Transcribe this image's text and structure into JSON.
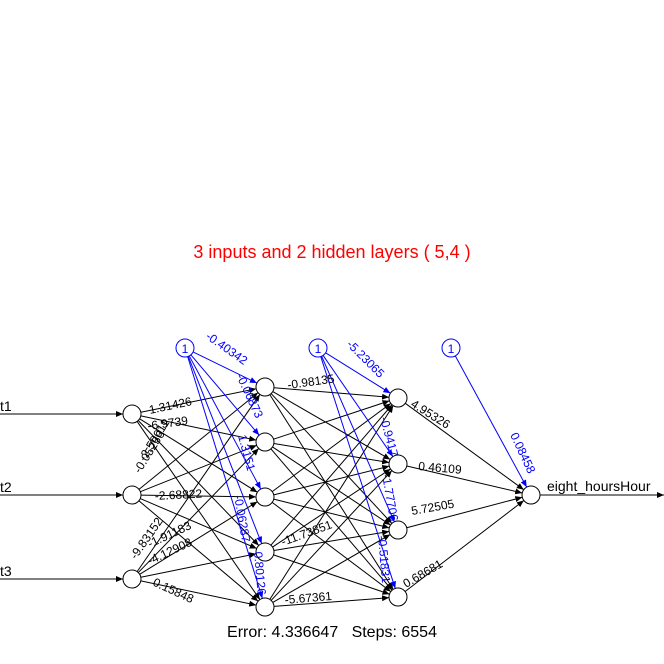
{
  "title": "3 inputs and 2 hidden layers ( 5,4 )",
  "footer": {
    "error_label": "Error: 4.336647",
    "steps_label": "Steps: 6554"
  },
  "network": {
    "inputs": [
      "t1",
      "t2",
      "t3"
    ],
    "output": "eight_hoursHour",
    "bias_label": "1",
    "colors": {
      "weights": "#000000",
      "bias": "#0000ff",
      "title": "#ff0000"
    },
    "visible_weight_labels": {
      "input_to_h1": [
        "1.31426",
        "-6.9739",
        "-0.05256",
        "-2.50011",
        "-2.68822",
        "-9.83152",
        "-1.91183",
        "-4.12908",
        "0.15848"
      ],
      "bias_to_h1": [
        "-0.40342",
        "-0.06873",
        "1.3151",
        "-0.06287",
        "0.80126"
      ],
      "h1_to_h2": [
        "-0.98135",
        "-5.67361",
        "-11.73851"
      ],
      "bias_to_h2": [
        "-5.23065",
        "-0.9417",
        "-1.77706",
        "-0.51831"
      ],
      "h2_to_output": [
        "4.95326",
        "0.46109",
        "5.72505",
        "0.68681"
      ],
      "bias_to_output": [
        "0.08458"
      ]
    }
  }
}
